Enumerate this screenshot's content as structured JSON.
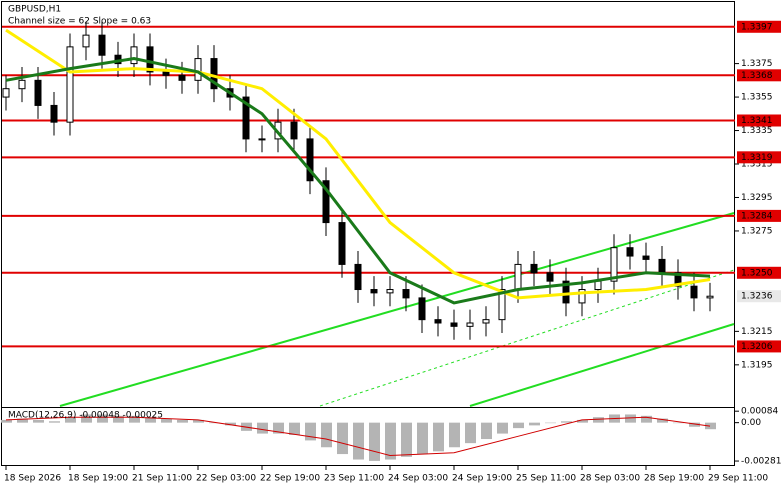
{
  "chart_data": {
    "type": "candlestick",
    "title": "GBPUSD,H1",
    "subtitle": "Channel size = 62 Slope = 0.63",
    "categories": [
      "18 Sep 2026",
      null,
      null,
      null,
      "18 Sep 19:00",
      null,
      null,
      null,
      "21 Sep 11:00",
      null,
      null,
      null,
      "22 Sep 03:00",
      null,
      null,
      null,
      "22 Sep 19:00",
      null,
      null,
      null,
      "23 Sep 11:00",
      null,
      null,
      null,
      "24 Sep 03:00",
      null,
      null,
      null,
      "24 Sep 19:00",
      null,
      null,
      null,
      "25 Sep 11:00",
      null,
      null,
      null,
      "28 Sep 03:00",
      null,
      null,
      null,
      "28 Sep 19:00",
      null,
      null,
      null,
      "29 Sep 11:00"
    ],
    "open": [
      1.3355,
      1.336,
      1.3365,
      1.335,
      1.334,
      1.3385,
      1.3392,
      1.338,
      1.3375,
      1.3385,
      1.337,
      1.3368,
      1.3365,
      1.3378,
      1.336,
      1.3355,
      1.333,
      1.333,
      1.334,
      1.333,
      1.3305,
      1.328,
      1.3255,
      1.324,
      1.3238,
      1.324,
      1.3235,
      1.3222,
      1.322,
      1.3218,
      1.322,
      1.3222,
      1.324,
      1.3255,
      1.325,
      1.3245,
      1.3232,
      1.324,
      1.3245,
      1.3265,
      1.326,
      1.3258,
      1.325,
      1.3242,
      1.3235
    ],
    "high": [
      1.3368,
      1.3373,
      1.3373,
      1.3358,
      1.3393,
      1.34,
      1.34,
      1.3388,
      1.3393,
      1.3393,
      1.3378,
      1.3376,
      1.3386,
      1.3386,
      1.3368,
      1.3363,
      1.3338,
      1.3348,
      1.3348,
      1.3338,
      1.3313,
      1.3288,
      1.3263,
      1.3248,
      1.3248,
      1.3248,
      1.3243,
      1.323,
      1.3228,
      1.3228,
      1.323,
      1.3248,
      1.3263,
      1.3263,
      1.3258,
      1.3253,
      1.3248,
      1.3253,
      1.3273,
      1.3273,
      1.3268,
      1.3266,
      1.3258,
      1.325,
      1.3244
    ],
    "low": [
      1.3347,
      1.3352,
      1.3342,
      1.3332,
      1.3332,
      1.3377,
      1.3372,
      1.3367,
      1.3367,
      1.3362,
      1.336,
      1.3357,
      1.3357,
      1.3352,
      1.3347,
      1.3322,
      1.3322,
      1.3322,
      1.3322,
      1.3297,
      1.3272,
      1.3247,
      1.3232,
      1.323,
      1.323,
      1.3227,
      1.3214,
      1.3212,
      1.321,
      1.321,
      1.3212,
      1.3214,
      1.3232,
      1.3242,
      1.3237,
      1.3224,
      1.3224,
      1.3232,
      1.3237,
      1.3252,
      1.325,
      1.3242,
      1.3234,
      1.3227,
      1.3227
    ],
    "close": [
      1.336,
      1.3365,
      1.335,
      1.334,
      1.3385,
      1.3392,
      1.338,
      1.3375,
      1.3385,
      1.337,
      1.3368,
      1.3365,
      1.3378,
      1.336,
      1.3355,
      1.333,
      1.333,
      1.334,
      1.333,
      1.3305,
      1.328,
      1.3255,
      1.324,
      1.3238,
      1.324,
      1.3235,
      1.3222,
      1.322,
      1.3218,
      1.322,
      1.3222,
      1.324,
      1.3255,
      1.325,
      1.3245,
      1.3232,
      1.324,
      1.3245,
      1.3265,
      1.326,
      1.3258,
      1.325,
      1.3242,
      1.3235,
      1.3236
    ],
    "color": "#000000",
    "lines": [
      {
        "color": "#ffee00",
        "x": [
          0,
          4,
          8,
          12,
          16,
          20,
          24,
          28,
          32,
          36,
          40,
          44
        ],
        "values": [
          1.3395,
          1.337,
          1.3372,
          1.337,
          1.336,
          1.333,
          1.328,
          1.325,
          1.3235,
          1.3238,
          1.324,
          1.3246
        ]
      },
      {
        "color": "#1a7a1a",
        "x": [
          0,
          4,
          8,
          12,
          16,
          20,
          24,
          28,
          32,
          36,
          40,
          44
        ],
        "values": [
          1.3365,
          1.3372,
          1.3378,
          1.337,
          1.3345,
          1.33,
          1.325,
          1.3232,
          1.324,
          1.3244,
          1.325,
          1.3248
        ]
      }
    ],
    "levels": [
      {
        "value": 1.3397,
        "color": "#e00000"
      },
      {
        "value": 1.3368,
        "color": "#e00000"
      },
      {
        "value": 1.3341,
        "color": "#e00000"
      },
      {
        "value": 1.3319,
        "color": "#e00000"
      },
      {
        "value": 1.3284,
        "color": "#e00000"
      },
      {
        "value": {
          "value": 1.325,
          "label": "1.3250"
        },
        "color": "#e00000"
      },
      {
        "value": 1.3206,
        "color": "#e00000"
      }
    ],
    "last_price": 1.3236,
    "ylim": [
      1.3171,
      1.3413
    ],
    "yticks": [
      1.3375,
      1.3355,
      1.3335,
      1.3315,
      1.3295,
      1.3275,
      1.3215,
      1.3195
    ],
    "macd": {
      "label": "MACD(12,26,9) -0.00048 -0.00025",
      "histogram": [
        0.0002,
        0.0003,
        0.0002,
        0.0001,
        0.0004,
        0.0006,
        0.0006,
        0.0005,
        0.0005,
        0.0004,
        0.0003,
        0.0002,
        0.0002,
        0.0,
        -0.0002,
        -0.0006,
        -0.0008,
        -0.0008,
        -0.0009,
        -0.0013,
        -0.0018,
        -0.0023,
        -0.0027,
        -0.0028,
        -0.0027,
        -0.0025,
        -0.0023,
        -0.0021,
        -0.0018,
        -0.0015,
        -0.0012,
        -0.0008,
        -0.0004,
        -0.0002,
        0.0,
        0.0001,
        0.0002,
        0.0004,
        0.0006,
        0.0006,
        0.0005,
        0.0003,
        0.0,
        -0.0003,
        -0.00048
      ],
      "histogram_color": "#b4b4b4",
      "signal": {
        "color": "#d00000",
        "x": [
          0,
          4,
          8,
          12,
          16,
          20,
          24,
          28,
          32,
          36,
          40,
          44
        ],
        "values": [
          0.0002,
          0.0004,
          0.0004,
          0.0002,
          -0.0005,
          -0.0012,
          -0.0024,
          -0.0022,
          -0.001,
          0.0002,
          0.0004,
          -0.00025
        ]
      },
      "ylim": [
        -0.0031,
        0.001
      ],
      "yticks": [
        0.00084,
        {
          "value": 0,
          "label": "0.00"
        },
        -0.00281
      ]
    }
  }
}
